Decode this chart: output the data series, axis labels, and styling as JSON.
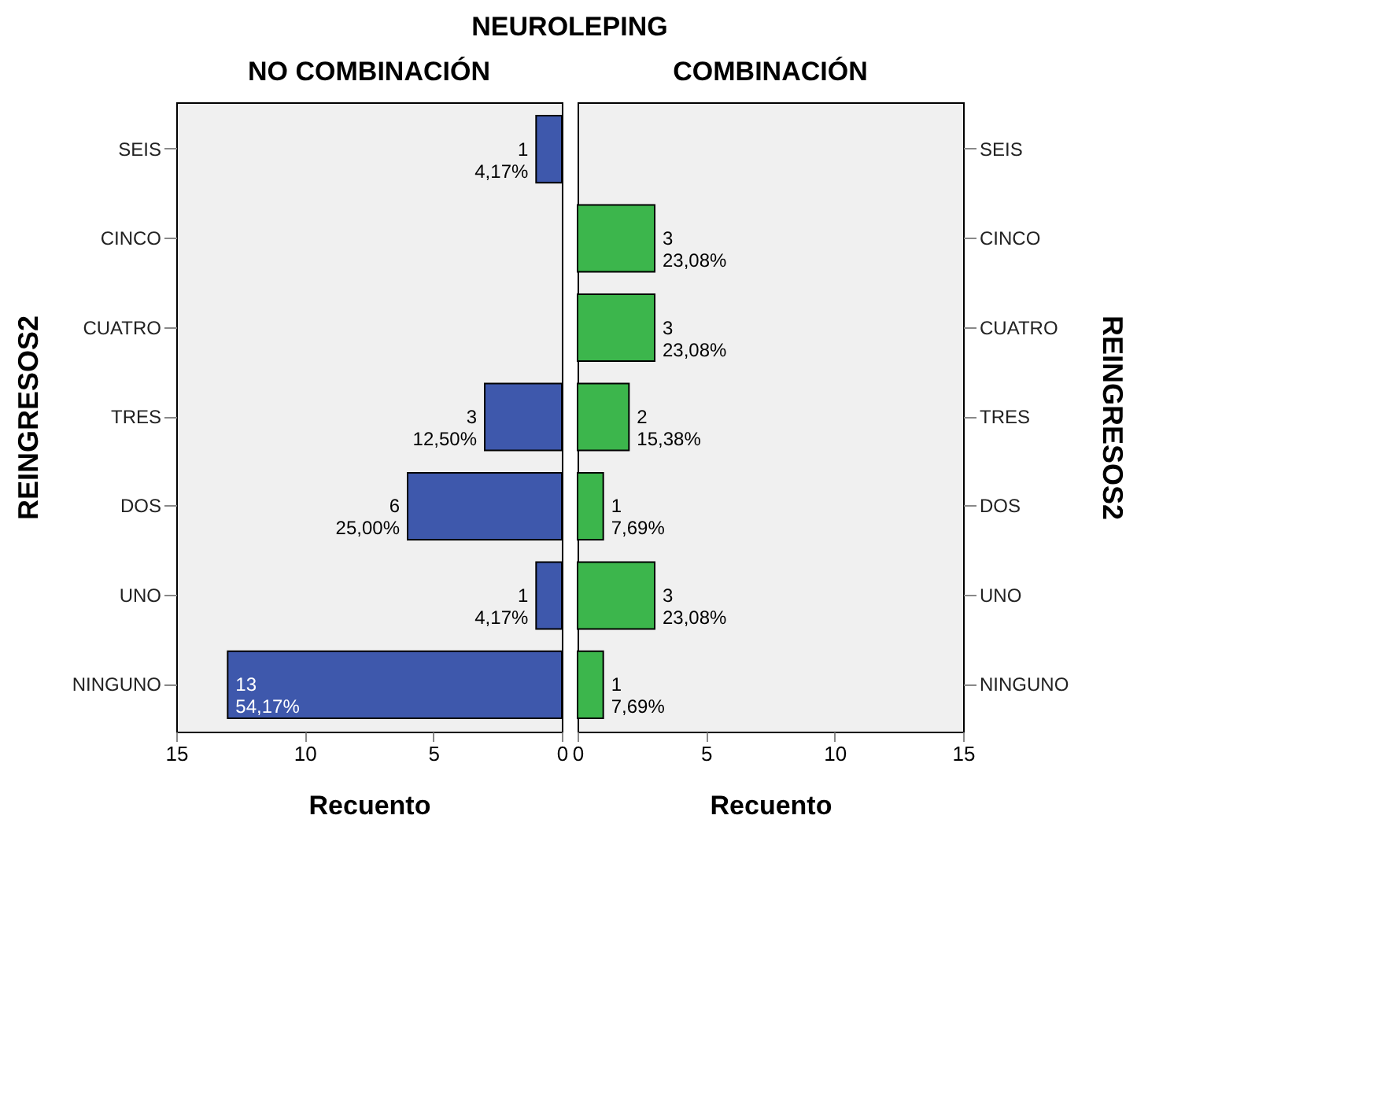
{
  "chart_data": [
    {
      "type": "bar",
      "orientation": "horizontal",
      "annotations": [
        "NEUROLEPING"
      ],
      "title": "NO COMBINACIÓN",
      "xlabel": "Recuento",
      "ylabel": "REINGRESOS2",
      "categories": [
        "SEIS",
        "CINCO",
        "CUATRO",
        "TRES",
        "DOS",
        "UNO",
        "NINGUNO"
      ],
      "values": [
        1,
        0,
        0,
        3,
        6,
        1,
        13
      ],
      "color": "#3e58ac",
      "value_labels": [
        "1\n4,17%",
        null,
        null,
        "3\n12,50%",
        "6\n25,00%",
        "1\n4,17%",
        "13\n54,17%"
      ],
      "xlim": [
        15,
        0
      ],
      "xticks": [
        15,
        10,
        5,
        0
      ],
      "grid": false
    },
    {
      "type": "bar",
      "orientation": "horizontal",
      "title": "COMBINACIÓN",
      "xlabel": "Recuento",
      "ylabel": "REINGRESOS2",
      "categories": [
        "SEIS",
        "CINCO",
        "CUATRO",
        "TRES",
        "DOS",
        "UNO",
        "NINGUNO"
      ],
      "values": [
        0,
        3,
        3,
        2,
        1,
        3,
        1
      ],
      "color": "#3cb64c",
      "value_labels": [
        null,
        "3\n23,08%",
        "3\n23,08%",
        "2\n15,38%",
        "1\n7,69%",
        "3\n23,08%",
        "1\n7,69%"
      ],
      "xlim": [
        0,
        15
      ],
      "xticks": [
        0,
        5,
        10,
        15
      ],
      "grid": false
    }
  ]
}
